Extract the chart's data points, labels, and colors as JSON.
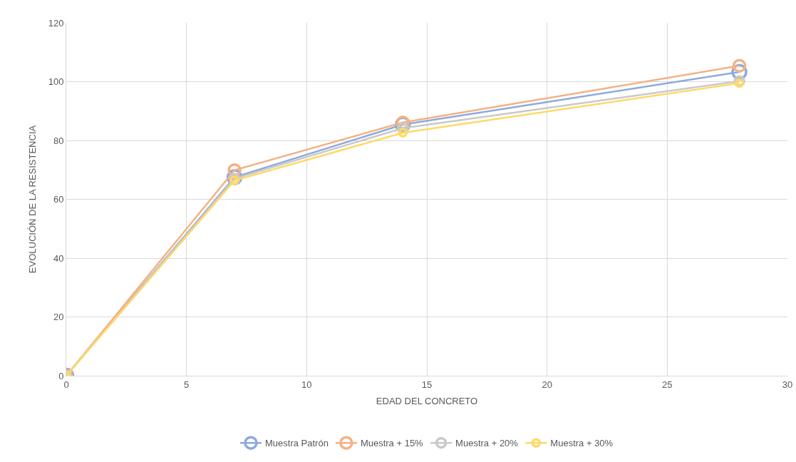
{
  "chart_data": {
    "type": "line",
    "xlabel": "EDAD DEL CONCRETO",
    "ylabel": "EVOLUCIÓN DE LA RESISTENCIA",
    "x": [
      0,
      7,
      14,
      28
    ],
    "series": [
      {
        "name": "Muestra Patrón",
        "color": "#8eaadb",
        "values": [
          0,
          67.5,
          85.4,
          103.3
        ]
      },
      {
        "name": "Muestra + 15%",
        "color": "#f4b183",
        "values": [
          0,
          69.9,
          86.1,
          105.4
        ]
      },
      {
        "name": "Muestra + 20%",
        "color": "#c9c9c9",
        "values": [
          0,
          67,
          84.2,
          100.2
        ]
      },
      {
        "name": "Muestra + 30%",
        "color": "#ffd966",
        "values": [
          0,
          66.4,
          82.6,
          99.5
        ]
      }
    ],
    "xlim": [
      0,
      30
    ],
    "xticks": [
      0,
      5,
      10,
      15,
      20,
      25,
      30
    ],
    "ylim": [
      0,
      120
    ],
    "yticks": [
      0,
      20,
      40,
      60,
      80,
      100,
      120
    ],
    "grid": true,
    "legend": "bottom",
    "marker": "circle",
    "line_style": "solid"
  }
}
